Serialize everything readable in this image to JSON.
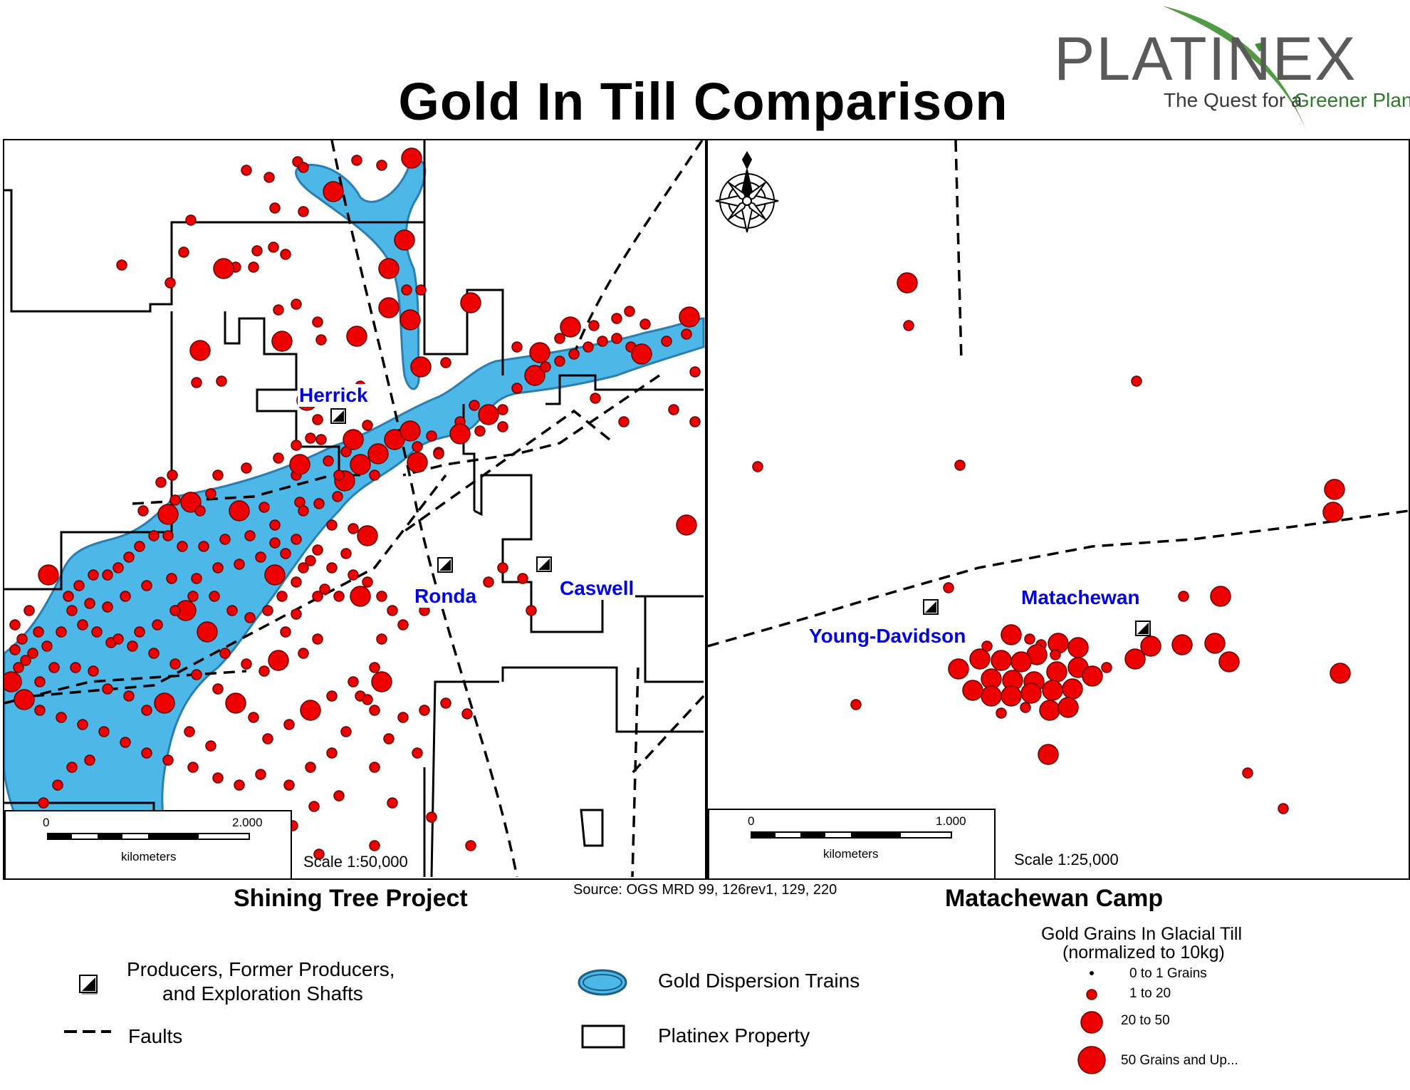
{
  "title": "Gold In Till Comparison",
  "logo": {
    "name": "PLATINEX",
    "tagline_prefix": "The Quest for a",
    "tagline_suffix": "Greener Planet",
    "colors": {
      "grey": "#5a5a5a",
      "green": "#3f8f2f"
    }
  },
  "colors": {
    "dispersion": "#4db8e8",
    "grain": "#ee0000",
    "label": "#0000ee"
  },
  "left_map": {
    "caption": "Shining Tree Project",
    "scale_text": "Scale 1:50,000",
    "scalebar": {
      "start": "0",
      "end": "2.000",
      "unit": "kilometers"
    },
    "labels": {
      "herrick": "Herrick",
      "ronda": "Ronda",
      "caswell": "Caswell"
    }
  },
  "right_map": {
    "caption": "Matachewan Camp",
    "scale_text": "Scale 1:25,000",
    "scalebar": {
      "start": "0",
      "end": "1.000",
      "unit": "kilometers"
    },
    "labels": {
      "young_davidson": "Young-Davidson",
      "matachewan": "Matachewan"
    },
    "north_arrow": "compass-rose-icon"
  },
  "source": "Source: OGS MRD 99, 126rev1, 129, 220",
  "legend": {
    "shafts": [
      "Producers, Former Producers,",
      "and Exploration Shafts"
    ],
    "faults": "Faults",
    "dispersion": "Gold Dispersion Trains",
    "property": "Platinex Property",
    "grains_title": [
      "Gold Grains In Glacial Till",
      "(normalized to 10kg)"
    ],
    "grain_classes": [
      "0 to 1 Grains",
      "1 to 20",
      "20 to 50",
      "50 Grains and Up..."
    ]
  }
}
